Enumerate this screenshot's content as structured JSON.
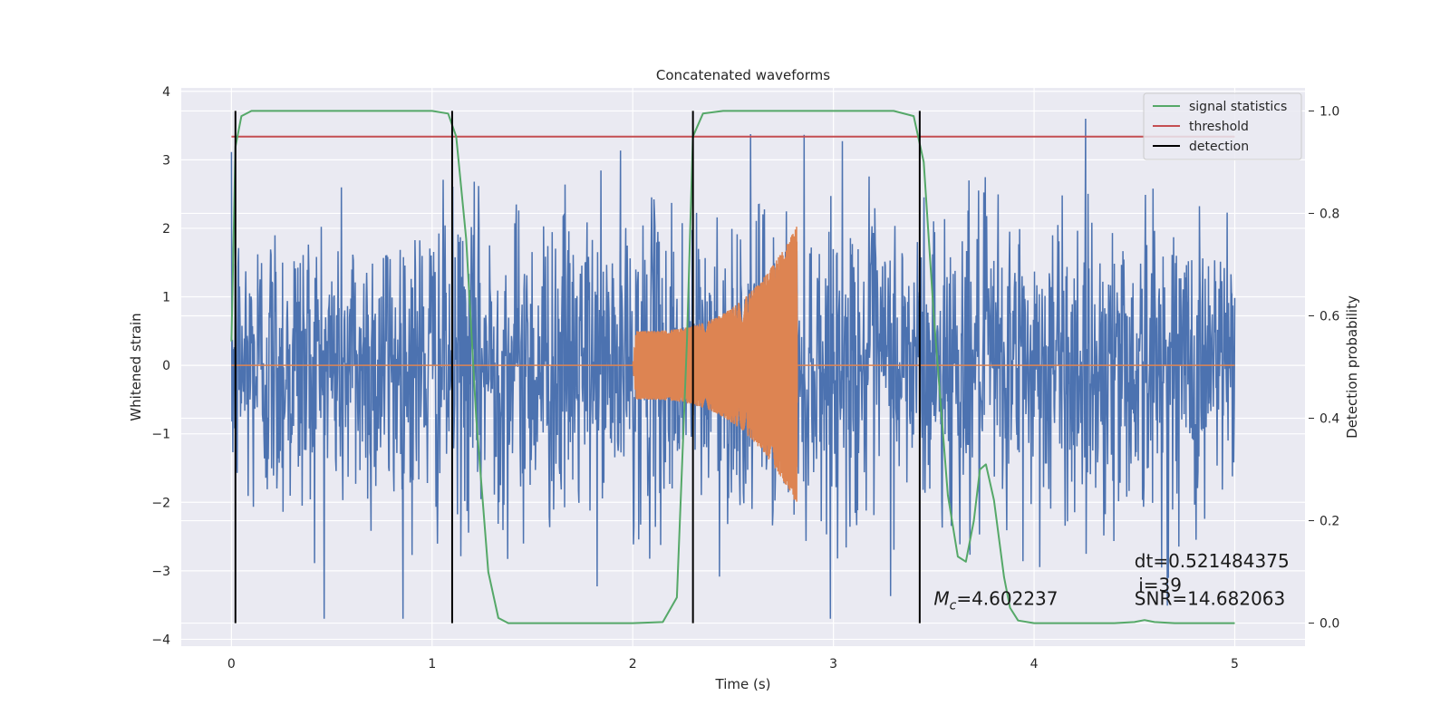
{
  "chart_data": {
    "type": "line",
    "title": "Concatenated waveforms",
    "xlabel": "Time (s)",
    "ylabel": "Whitened strain",
    "ylabel_right": "Detection probability",
    "xlim": [
      -0.25,
      5.35
    ],
    "ylim": [
      -4.1,
      4.05
    ],
    "ylim_right": [
      -0.045,
      1.045
    ],
    "x_ticks": [
      0,
      1,
      2,
      3,
      4,
      5
    ],
    "y_ticks": [
      -4,
      -3,
      -2,
      -1,
      0,
      1,
      2,
      3,
      4
    ],
    "y_ticks_right": [
      0.0,
      0.2,
      0.4,
      0.6,
      0.8,
      1.0
    ],
    "grid": true,
    "legend_position": "top-right",
    "legend": [
      {
        "label": "signal statistics",
        "color": "#55a868"
      },
      {
        "label": "threshold",
        "color": "#c44e52"
      },
      {
        "label": "detection",
        "color": "#000000"
      }
    ],
    "series": [
      {
        "name": "signal statistics",
        "axis": "right",
        "color": "#55a868",
        "x": [
          0.0,
          0.02,
          0.05,
          0.1,
          0.2,
          1.0,
          1.08,
          1.12,
          1.17,
          1.22,
          1.28,
          1.33,
          1.38,
          1.5,
          2.0,
          2.15,
          2.22,
          2.27,
          2.3,
          2.35,
          2.45,
          3.3,
          3.4,
          3.45,
          3.5,
          3.57,
          3.62,
          3.66,
          3.7,
          3.73,
          3.76,
          3.8,
          3.85,
          3.88,
          3.92,
          4.0,
          4.4,
          4.5,
          4.55,
          4.6,
          4.7,
          5.0
        ],
        "y": [
          0.55,
          0.93,
          0.99,
          1.0,
          1.0,
          1.0,
          0.995,
          0.95,
          0.75,
          0.4,
          0.1,
          0.01,
          0.0,
          0.0,
          0.0,
          0.002,
          0.05,
          0.55,
          0.95,
          0.995,
          1.0,
          1.0,
          0.99,
          0.9,
          0.6,
          0.25,
          0.13,
          0.12,
          0.2,
          0.3,
          0.31,
          0.24,
          0.09,
          0.03,
          0.005,
          0.0,
          0.0,
          0.002,
          0.006,
          0.002,
          0.0,
          0.0
        ]
      },
      {
        "name": "threshold",
        "axis": "right",
        "color": "#c44e52",
        "x": [
          0.0,
          5.0
        ],
        "y": [
          0.95,
          0.95
        ]
      },
      {
        "name": "detection",
        "axis": "right",
        "color": "#000000",
        "type": "vlines",
        "x": [
          0.02,
          1.1,
          2.3,
          3.43
        ],
        "y_range": [
          0.0,
          1.0
        ]
      },
      {
        "name": "",
        "axis": "left",
        "color": "#4c72b0",
        "kind": "noise",
        "x_range": [
          0.0,
          5.0
        ],
        "samples": 2100,
        "amplitude_p95": 2.2,
        "min": -3.7,
        "max": 3.6
      },
      {
        "name": "",
        "axis": "left",
        "color": "#dd8452",
        "kind": "chirp",
        "x_range": [
          0.0,
          5.0
        ],
        "chirp_start": 2.0,
        "chirp_end": 2.82,
        "chirp_amplitude_start": 0.5,
        "chirp_amplitude_end": 2.05,
        "baseline": 0.0
      }
    ],
    "annotations": [
      {
        "text": "dt=0.521484375",
        "x": 4.5,
        "y": -2.95
      },
      {
        "text": "i=39",
        "x": 4.52,
        "y": -3.3
      },
      {
        "text": "=4.602237",
        "prefix_var": "M",
        "prefix_sub": "c",
        "x": 3.5,
        "y": -3.5
      },
      {
        "text": "SNR=14.682063",
        "x": 4.5,
        "y": -3.5
      }
    ]
  }
}
